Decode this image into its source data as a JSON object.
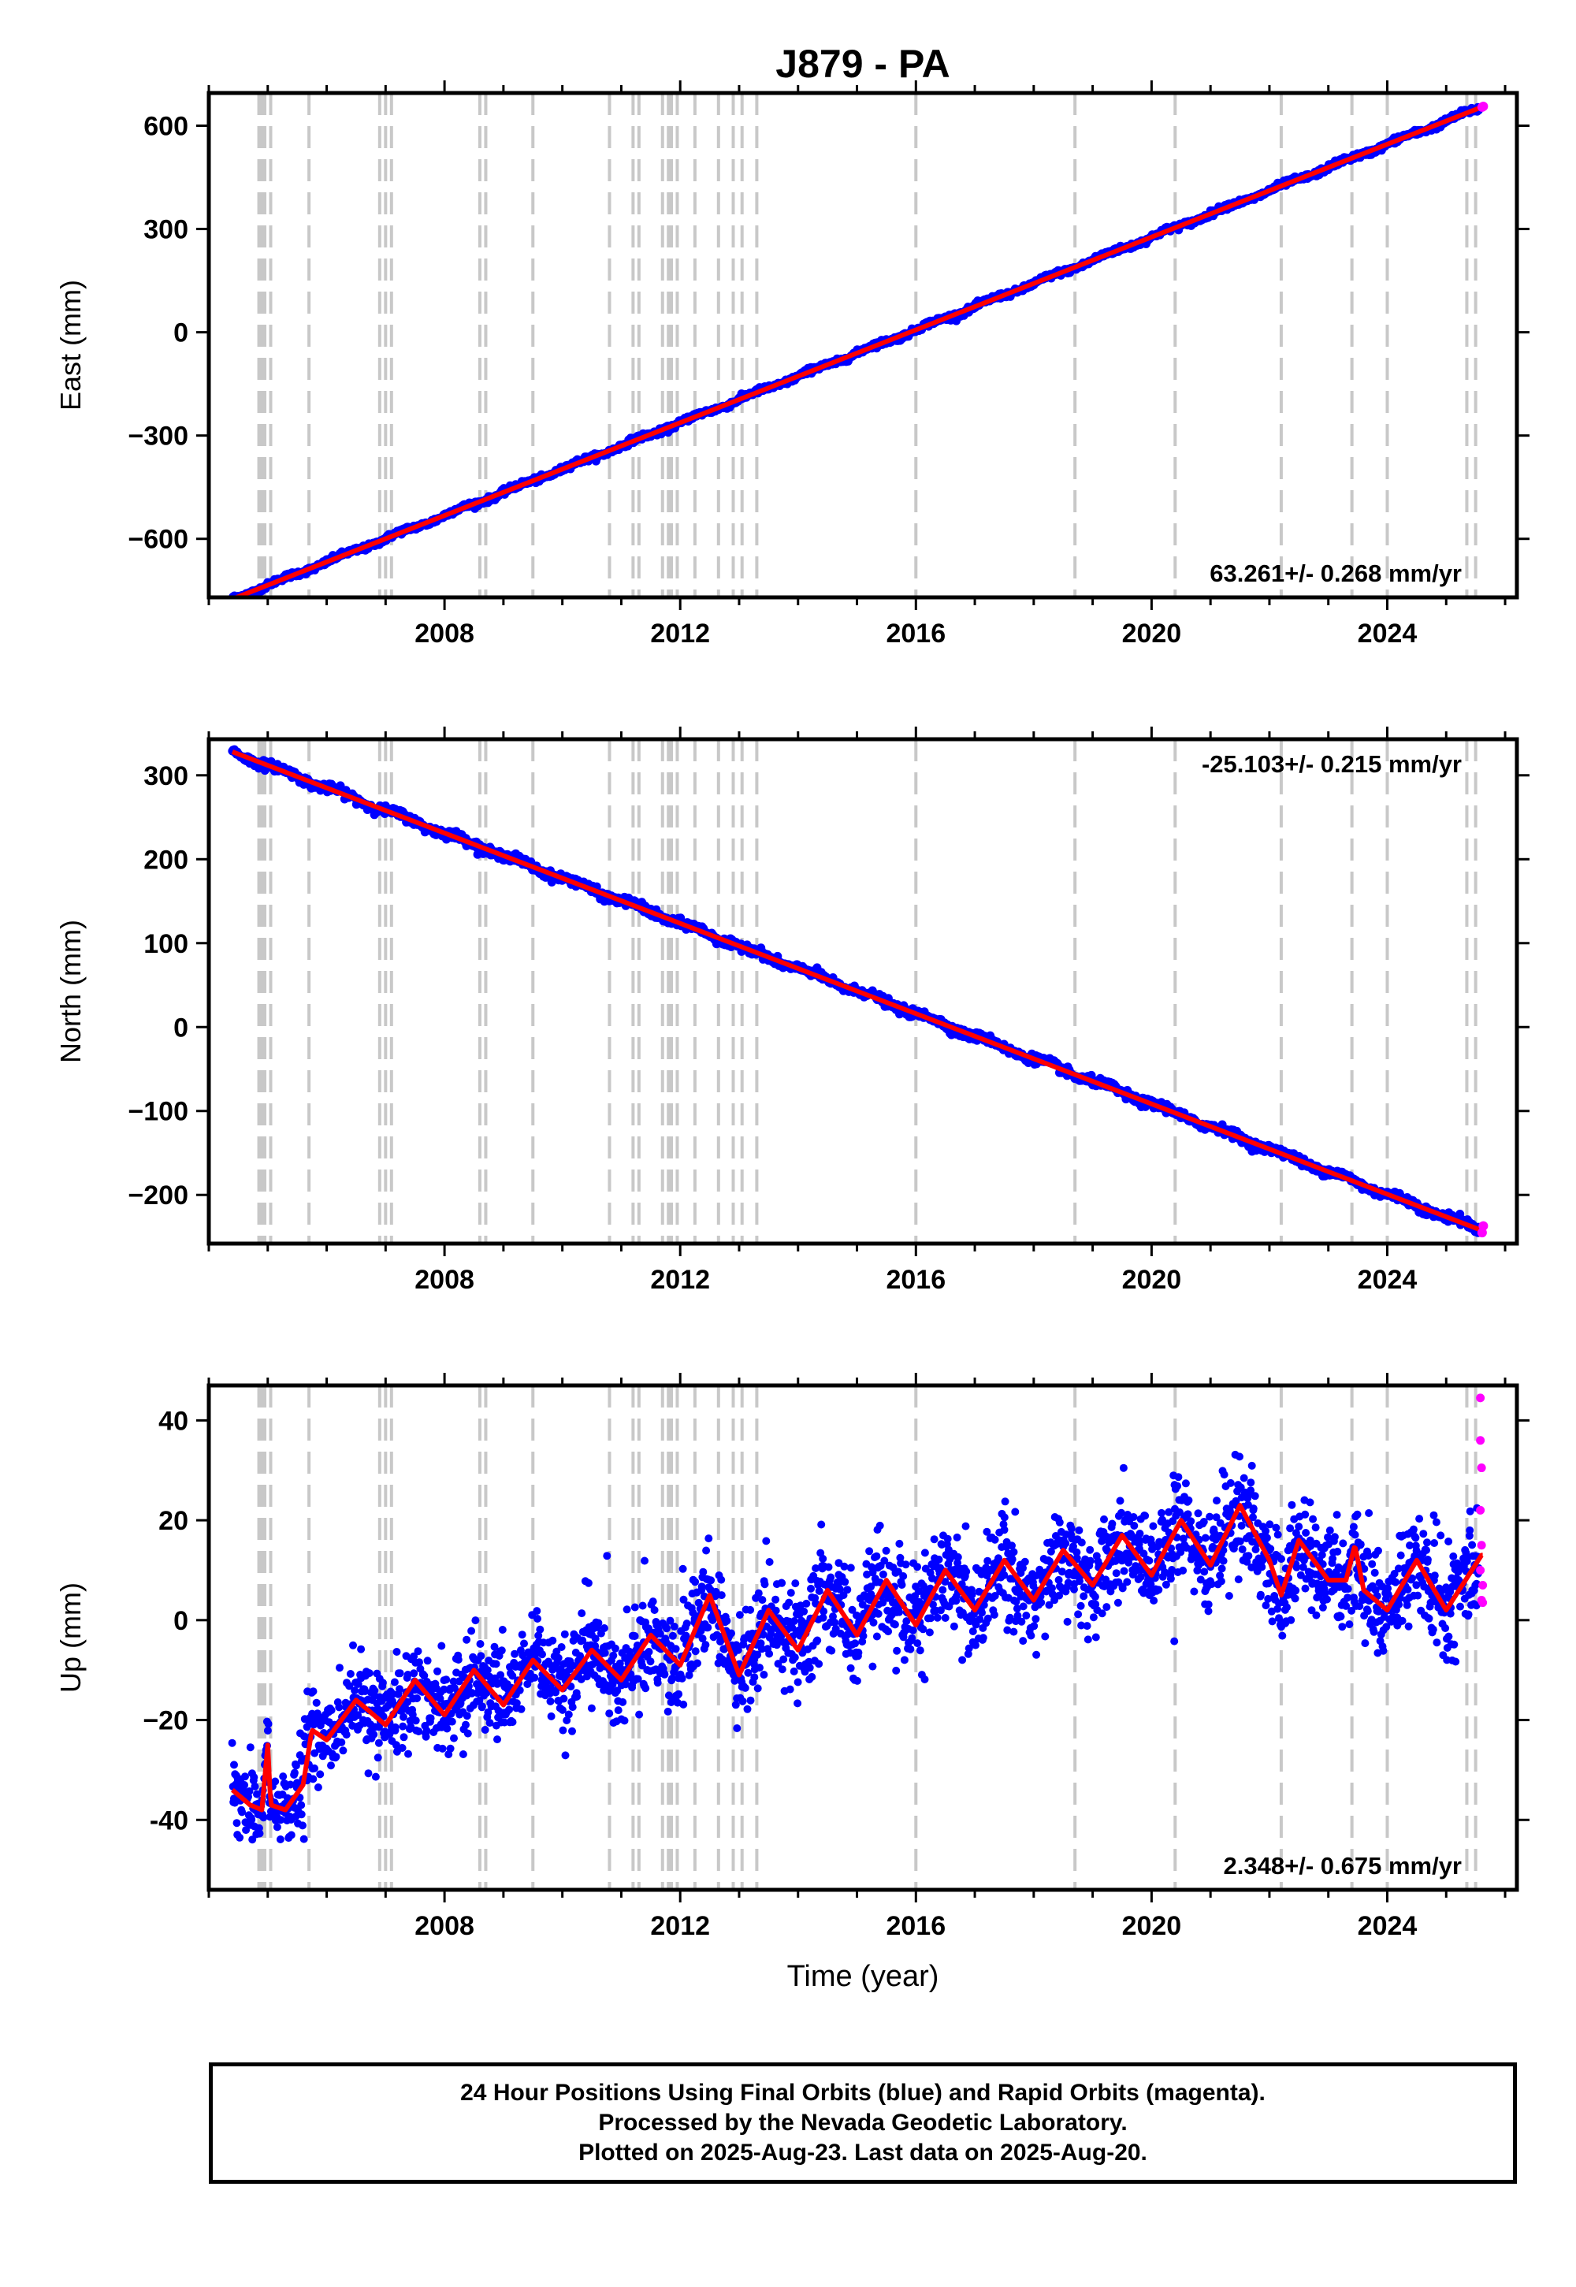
{
  "title": "J879 - PA",
  "chart_data": [
    {
      "type": "scatter",
      "panel": "east",
      "ylabel": "East (mm)",
      "xlabel": "",
      "xlim": [
        2004.0,
        2026.2
      ],
      "ylim": [
        -770,
        695
      ],
      "yticks": [
        -600,
        -300,
        0,
        300,
        600
      ],
      "ytick_labels": [
        "−600",
        "−300",
        "0",
        "300",
        "600"
      ],
      "xticks": [
        2008,
        2012,
        2016,
        2020,
        2024
      ],
      "xtick_labels": [
        "2008",
        "2012",
        "2016",
        "2020",
        "2024"
      ],
      "rate_label": "63.261+/- 0.268 mm/yr",
      "rate_label_position": "bottom-right",
      "trend": {
        "start": [
          2004.4,
          -775
        ],
        "end": [
          2025.63,
          656
        ]
      },
      "final_orbits_color": "#0000ff",
      "rapid_orbits_color": "#ff00ff",
      "model_color": "#ff0000"
    },
    {
      "type": "scatter",
      "panel": "north",
      "ylabel": "North (mm)",
      "xlabel": "",
      "xlim": [
        2004.0,
        2026.2
      ],
      "ylim": [
        -258,
        343
      ],
      "yticks": [
        -200,
        -100,
        0,
        100,
        200,
        300
      ],
      "ytick_labels": [
        "−200",
        "−100",
        "0",
        "100",
        "200",
        "300"
      ],
      "xticks": [
        2008,
        2012,
        2016,
        2020,
        2024
      ],
      "xtick_labels": [
        "2008",
        "2012",
        "2016",
        "2020",
        "2024"
      ],
      "rate_label": "-25.103+/- 0.215 mm/yr",
      "rate_label_position": "top-right",
      "trend": {
        "start": [
          2004.4,
          328
        ],
        "end": [
          2025.63,
          -243
        ]
      },
      "final_orbits_color": "#0000ff",
      "rapid_orbits_color": "#ff00ff",
      "model_color": "#ff0000"
    },
    {
      "type": "scatter",
      "panel": "up",
      "ylabel": "Up (mm)",
      "xlabel": "Time (year)",
      "xlim": [
        2004.0,
        2026.2
      ],
      "ylim": [
        -54,
        47
      ],
      "yticks": [
        -40,
        -20,
        0,
        20,
        40
      ],
      "ytick_labels": [
        "-40",
        "−20",
        "0",
        "20",
        "40"
      ],
      "xticks": [
        2008,
        2012,
        2016,
        2020,
        2024
      ],
      "xtick_labels": [
        "2008",
        "2012",
        "2016",
        "2020",
        "2024"
      ],
      "rate_label": "2.348+/- 0.675 mm/yr",
      "rate_label_position": "bottom-right",
      "model_knots": [
        [
          2004.4,
          -34
        ],
        [
          2004.7,
          -37
        ],
        [
          2004.9,
          -38
        ],
        [
          2005.0,
          -25
        ],
        [
          2005.05,
          -37
        ],
        [
          2005.3,
          -38
        ],
        [
          2005.6,
          -33
        ],
        [
          2005.75,
          -22
        ],
        [
          2006.0,
          -24
        ],
        [
          2006.5,
          -16
        ],
        [
          2007.0,
          -21
        ],
        [
          2007.5,
          -12
        ],
        [
          2008.0,
          -19
        ],
        [
          2008.5,
          -10
        ],
        [
          2009.0,
          -17
        ],
        [
          2009.5,
          -8
        ],
        [
          2010.0,
          -14
        ],
        [
          2010.5,
          -6
        ],
        [
          2011.0,
          -12
        ],
        [
          2011.5,
          -3
        ],
        [
          2012.0,
          -9
        ],
        [
          2012.5,
          5
        ],
        [
          2013.0,
          -11
        ],
        [
          2013.5,
          2
        ],
        [
          2014.0,
          -6
        ],
        [
          2014.5,
          6
        ],
        [
          2015.0,
          -3
        ],
        [
          2015.5,
          8
        ],
        [
          2016.0,
          -1
        ],
        [
          2016.5,
          10
        ],
        [
          2017.0,
          2
        ],
        [
          2017.5,
          12
        ],
        [
          2018.0,
          4
        ],
        [
          2018.5,
          14
        ],
        [
          2019.0,
          7
        ],
        [
          2019.5,
          17
        ],
        [
          2020.0,
          9
        ],
        [
          2020.5,
          20
        ],
        [
          2021.0,
          11
        ],
        [
          2021.5,
          23
        ],
        [
          2022.0,
          12
        ],
        [
          2022.2,
          5
        ],
        [
          2022.5,
          16
        ],
        [
          2023.0,
          8
        ],
        [
          2023.3,
          8
        ],
        [
          2023.45,
          15
        ],
        [
          2023.6,
          6
        ],
        [
          2024.0,
          2
        ],
        [
          2024.5,
          12
        ],
        [
          2025.0,
          2
        ],
        [
          2025.6,
          13
        ]
      ],
      "final_orbits_color": "#0000ff",
      "rapid_orbits_color": "#ff00ff",
      "model_color": "#ff0000"
    }
  ],
  "offsets_epochs": [
    2004.85,
    2004.9,
    2004.95,
    2005.05,
    2005.7,
    2006.9,
    2007.0,
    2007.1,
    2008.6,
    2008.7,
    2009.5,
    2010.8,
    2011.2,
    2011.3,
    2011.7,
    2011.8,
    2011.85,
    2011.95,
    2012.25,
    2012.65,
    2012.9,
    2013.05,
    2013.3,
    2016.0,
    2018.7,
    2020.4,
    2022.2,
    2023.4,
    2024.0,
    2025.35,
    2025.5
  ],
  "offsets_color": "#c8c8c8",
  "footer": {
    "line1": "24 Hour Positions Using Final Orbits (blue) and Rapid Orbits (magenta).",
    "line2": "Processed by the Nevada Geodetic Laboratory.",
    "line3": "Plotted on 2025-Aug-23. Last data on 2025-Aug-20."
  }
}
